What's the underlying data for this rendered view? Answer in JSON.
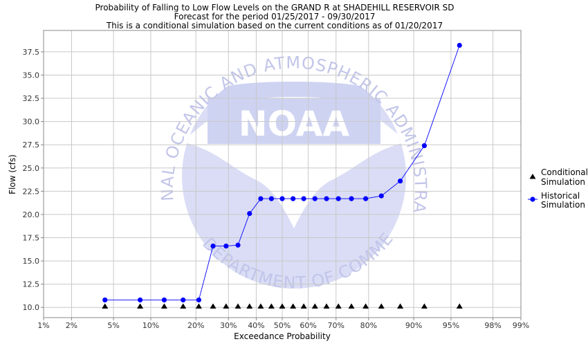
{
  "chart_data": {
    "type": "line",
    "title_lines": [
      "Probability of Falling to Low Flow Levels on the GRAND R at SHADEHILL RESERVOIR SD",
      "Forecast for the period 01/25/2017 - 09/30/2017",
      "This is a conditional simulation based on the current conditions as of 01/20/2017"
    ],
    "xlabel": "Exceedance Probability",
    "ylabel": "Flow (cfs)",
    "x_scale": "normal-probability",
    "x_ticks": [
      1,
      2,
      5,
      10,
      20,
      30,
      40,
      50,
      60,
      70,
      80,
      90,
      95,
      98,
      99
    ],
    "x_tick_labels": [
      "1%",
      "2%",
      "5%",
      "10%",
      "20%",
      "30%",
      "40%",
      "50%",
      "60%",
      "70%",
      "80%",
      "90%",
      "95%",
      "98%",
      "99%"
    ],
    "y_ticks": [
      10.0,
      12.5,
      15.0,
      17.5,
      20.0,
      22.5,
      25.0,
      27.5,
      30.0,
      32.5,
      35.0,
      37.5
    ],
    "y_tick_labels": [
      "10.0",
      "12.5",
      "15.0",
      "17.5",
      "20.0",
      "22.5",
      "25.0",
      "27.5",
      "30.0",
      "32.5",
      "35.0",
      "37.5"
    ],
    "xlim": [
      1,
      99
    ],
    "ylim": [
      8.9,
      39.8
    ],
    "grid": true,
    "legend_position": "right",
    "series": [
      {
        "name": "Conditional\nSimulation",
        "legend_lines": [
          "Conditional",
          "Simulation"
        ],
        "marker": "triangle",
        "color": "#000000",
        "x": [
          4.2,
          8.3,
          12.5,
          16.7,
          20.8,
          25.0,
          29.2,
          33.3,
          37.5,
          41.7,
          45.8,
          50.0,
          54.2,
          58.3,
          62.5,
          66.7,
          70.8,
          75.0,
          79.2,
          83.3,
          87.5,
          91.7,
          95.8
        ],
        "y": [
          10.1,
          10.1,
          10.1,
          10.1,
          10.1,
          10.1,
          10.1,
          10.1,
          10.1,
          10.1,
          10.1,
          10.1,
          10.1,
          10.1,
          10.1,
          10.1,
          10.1,
          10.1,
          10.1,
          10.1,
          10.1,
          10.1,
          10.1
        ]
      },
      {
        "name": "Historical\nSimulation",
        "legend_lines": [
          "Historical",
          "Simulation"
        ],
        "marker": "circle",
        "color": "#0000ff",
        "x": [
          4.2,
          8.3,
          12.5,
          16.7,
          20.8,
          25.0,
          29.2,
          33.3,
          37.5,
          41.7,
          45.8,
          50.0,
          54.2,
          58.3,
          62.5,
          66.7,
          70.8,
          75.0,
          79.2,
          83.3,
          87.5,
          91.7,
          95.8
        ],
        "y": [
          10.8,
          10.8,
          10.8,
          10.8,
          10.8,
          16.6,
          16.6,
          16.7,
          20.1,
          21.7,
          21.7,
          21.7,
          21.7,
          21.7,
          21.7,
          21.7,
          21.7,
          21.7,
          21.7,
          22.0,
          23.6,
          27.4,
          38.2
        ]
      }
    ]
  },
  "watermark": {
    "logo_text": "NOAA",
    "top_arc_text": "NATIONAL OCEANIC AND ATMOSPHERIC ADMINISTRATION",
    "bottom_arc_text": "U.S. DEPARTMENT OF COMMERCE",
    "color_light": "#d4d8f4",
    "color_mid": "#c6ccf0"
  },
  "colors": {
    "plot_background": "#ffffff",
    "grid": "#c8c8c8",
    "axis": "#888888"
  }
}
